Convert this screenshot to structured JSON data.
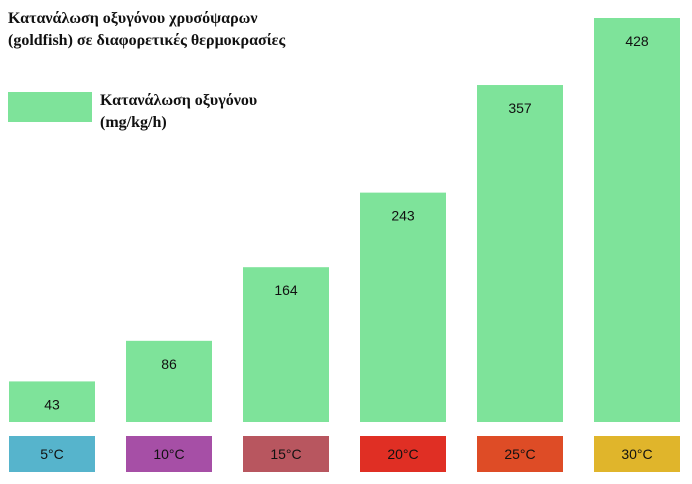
{
  "chart_data": {
    "type": "bar",
    "title": "Κατανάλωση οξυγόνου χρυσόψαρων (goldfish) σε διαφορετικές θερμοκρασίες",
    "categories": [
      "5°C",
      "10°C",
      "15°C",
      "20°C",
      "25°C",
      "30°C"
    ],
    "category_colors": [
      "#56b4cc",
      "#a64fa6",
      "#b8565f",
      "#e02f24",
      "#de4c26",
      "#e0b52b"
    ],
    "series": [
      {
        "name": "Κατανάλωση οξυγόνου (mg/kg/h)",
        "color": "#7ee39a",
        "values": [
          43,
          86,
          164,
          243,
          357,
          428
        ]
      }
    ],
    "xlabel": "",
    "ylabel": "",
    "ylim": [
      0,
      428
    ],
    "grid": false,
    "legend": "top-left"
  }
}
